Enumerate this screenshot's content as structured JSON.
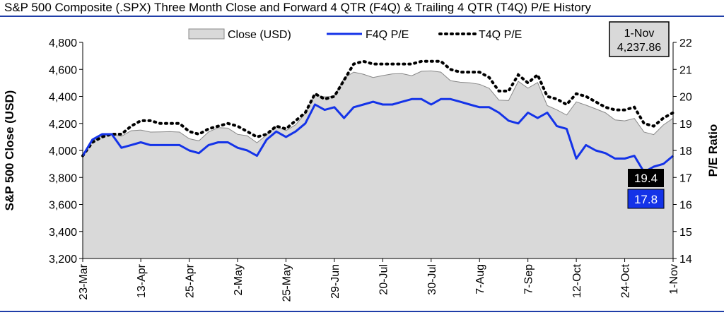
{
  "chart_data": {
    "type": "area+line",
    "title": "S&P 500 Composite (.SPX) Three Month Close and Forward 4 QTR (F4Q) & Trailing 4 QTR (T4Q) P/E History",
    "ylabel_left": "S&P 500 Close (USD)",
    "ylabel_right": "P/E Ratio",
    "ylim_left": [
      3200,
      4800
    ],
    "ylim_right": [
      14,
      22
    ],
    "left_ticks": [
      "3,200",
      "3,400",
      "3,600",
      "3,800",
      "4,000",
      "4,200",
      "4,400",
      "4,600",
      "4,800"
    ],
    "right_ticks": [
      "14",
      "15",
      "16",
      "17",
      "18",
      "19",
      "20",
      "21",
      "22"
    ],
    "x_tick_labels": [
      "23-Mar",
      "13-Apr",
      "25-Apr",
      "2-May",
      "25-May",
      "29-Jun",
      "20-Jul",
      "30-Jul",
      "7-Aug",
      "7-Sep",
      "12-Oct",
      "24-Oct",
      "1-Nov"
    ],
    "x_tick_indices": [
      0,
      6,
      11,
      16,
      21,
      26,
      31,
      36,
      41,
      46,
      51,
      56,
      61
    ],
    "legend": {
      "close": "Close (USD)",
      "f4q": "F4Q P/E",
      "t4q": "T4Q P/E",
      "placement": "top-center"
    },
    "annotation": {
      "date": "1-Nov",
      "value": "4,237.86"
    },
    "end_labels": {
      "t4q": "19.4",
      "f4q": "17.8"
    },
    "colors": {
      "close_fill": "#d9d9d9",
      "f4q": "#1433e8",
      "t4q": "#000000",
      "end_label_t4q": "#000000",
      "end_label_f4q": "#1433e8"
    },
    "series": [
      {
        "name": "Close (USD)",
        "values": [
          3971,
          4069,
          4109,
          4117,
          4105,
          4146,
          4151,
          4136,
          4137,
          4139,
          4136,
          4087,
          4071,
          4137,
          4169,
          4165,
          4119,
          4109,
          4057,
          4115,
          4180,
          4147,
          4190,
          4274,
          4410,
          4397,
          4401,
          4536,
          4580,
          4564,
          4540,
          4554,
          4567,
          4569,
          4553,
          4586,
          4589,
          4580,
          4516,
          4505,
          4501,
          4490,
          4460,
          4373,
          4369,
          4512,
          4461,
          4503,
          4332,
          4300,
          4262,
          4360,
          4335,
          4308,
          4279,
          4226,
          4219,
          4237,
          4136,
          4117,
          4189,
          4238
        ]
      },
      {
        "name": "F4Q P/E",
        "values": [
          17.8,
          18.4,
          18.6,
          18.6,
          18.1,
          18.2,
          18.3,
          18.2,
          18.2,
          18.2,
          18.2,
          18.0,
          17.9,
          18.2,
          18.3,
          18.3,
          18.1,
          18.0,
          17.8,
          18.4,
          18.7,
          18.5,
          18.7,
          19.0,
          19.7,
          19.5,
          19.6,
          19.2,
          19.6,
          19.7,
          19.8,
          19.7,
          19.7,
          19.8,
          19.9,
          19.9,
          19.7,
          19.9,
          19.9,
          19.8,
          19.7,
          19.6,
          19.6,
          19.4,
          19.1,
          19.0,
          19.4,
          19.2,
          19.4,
          18.9,
          18.8,
          17.7,
          18.2,
          18.0,
          17.9,
          17.7,
          17.7,
          17.8,
          17.2,
          17.4,
          17.5,
          17.8
        ]
      },
      {
        "name": "T4Q P/E",
        "values": [
          17.8,
          18.3,
          18.5,
          18.6,
          18.6,
          18.9,
          19.1,
          19.1,
          19.0,
          19.0,
          19.0,
          18.7,
          18.6,
          18.8,
          18.9,
          19.0,
          18.9,
          18.7,
          18.5,
          18.6,
          18.9,
          18.8,
          19.1,
          19.4,
          20.1,
          19.9,
          20.0,
          20.6,
          21.2,
          21.3,
          21.2,
          21.2,
          21.2,
          21.2,
          21.2,
          21.3,
          21.3,
          21.3,
          21.0,
          20.9,
          20.9,
          20.9,
          20.7,
          20.2,
          20.2,
          20.8,
          20.5,
          20.8,
          20.0,
          19.9,
          19.7,
          20.1,
          20.0,
          19.8,
          19.6,
          19.5,
          19.5,
          19.6,
          19.0,
          18.9,
          19.2,
          19.4
        ]
      }
    ]
  }
}
